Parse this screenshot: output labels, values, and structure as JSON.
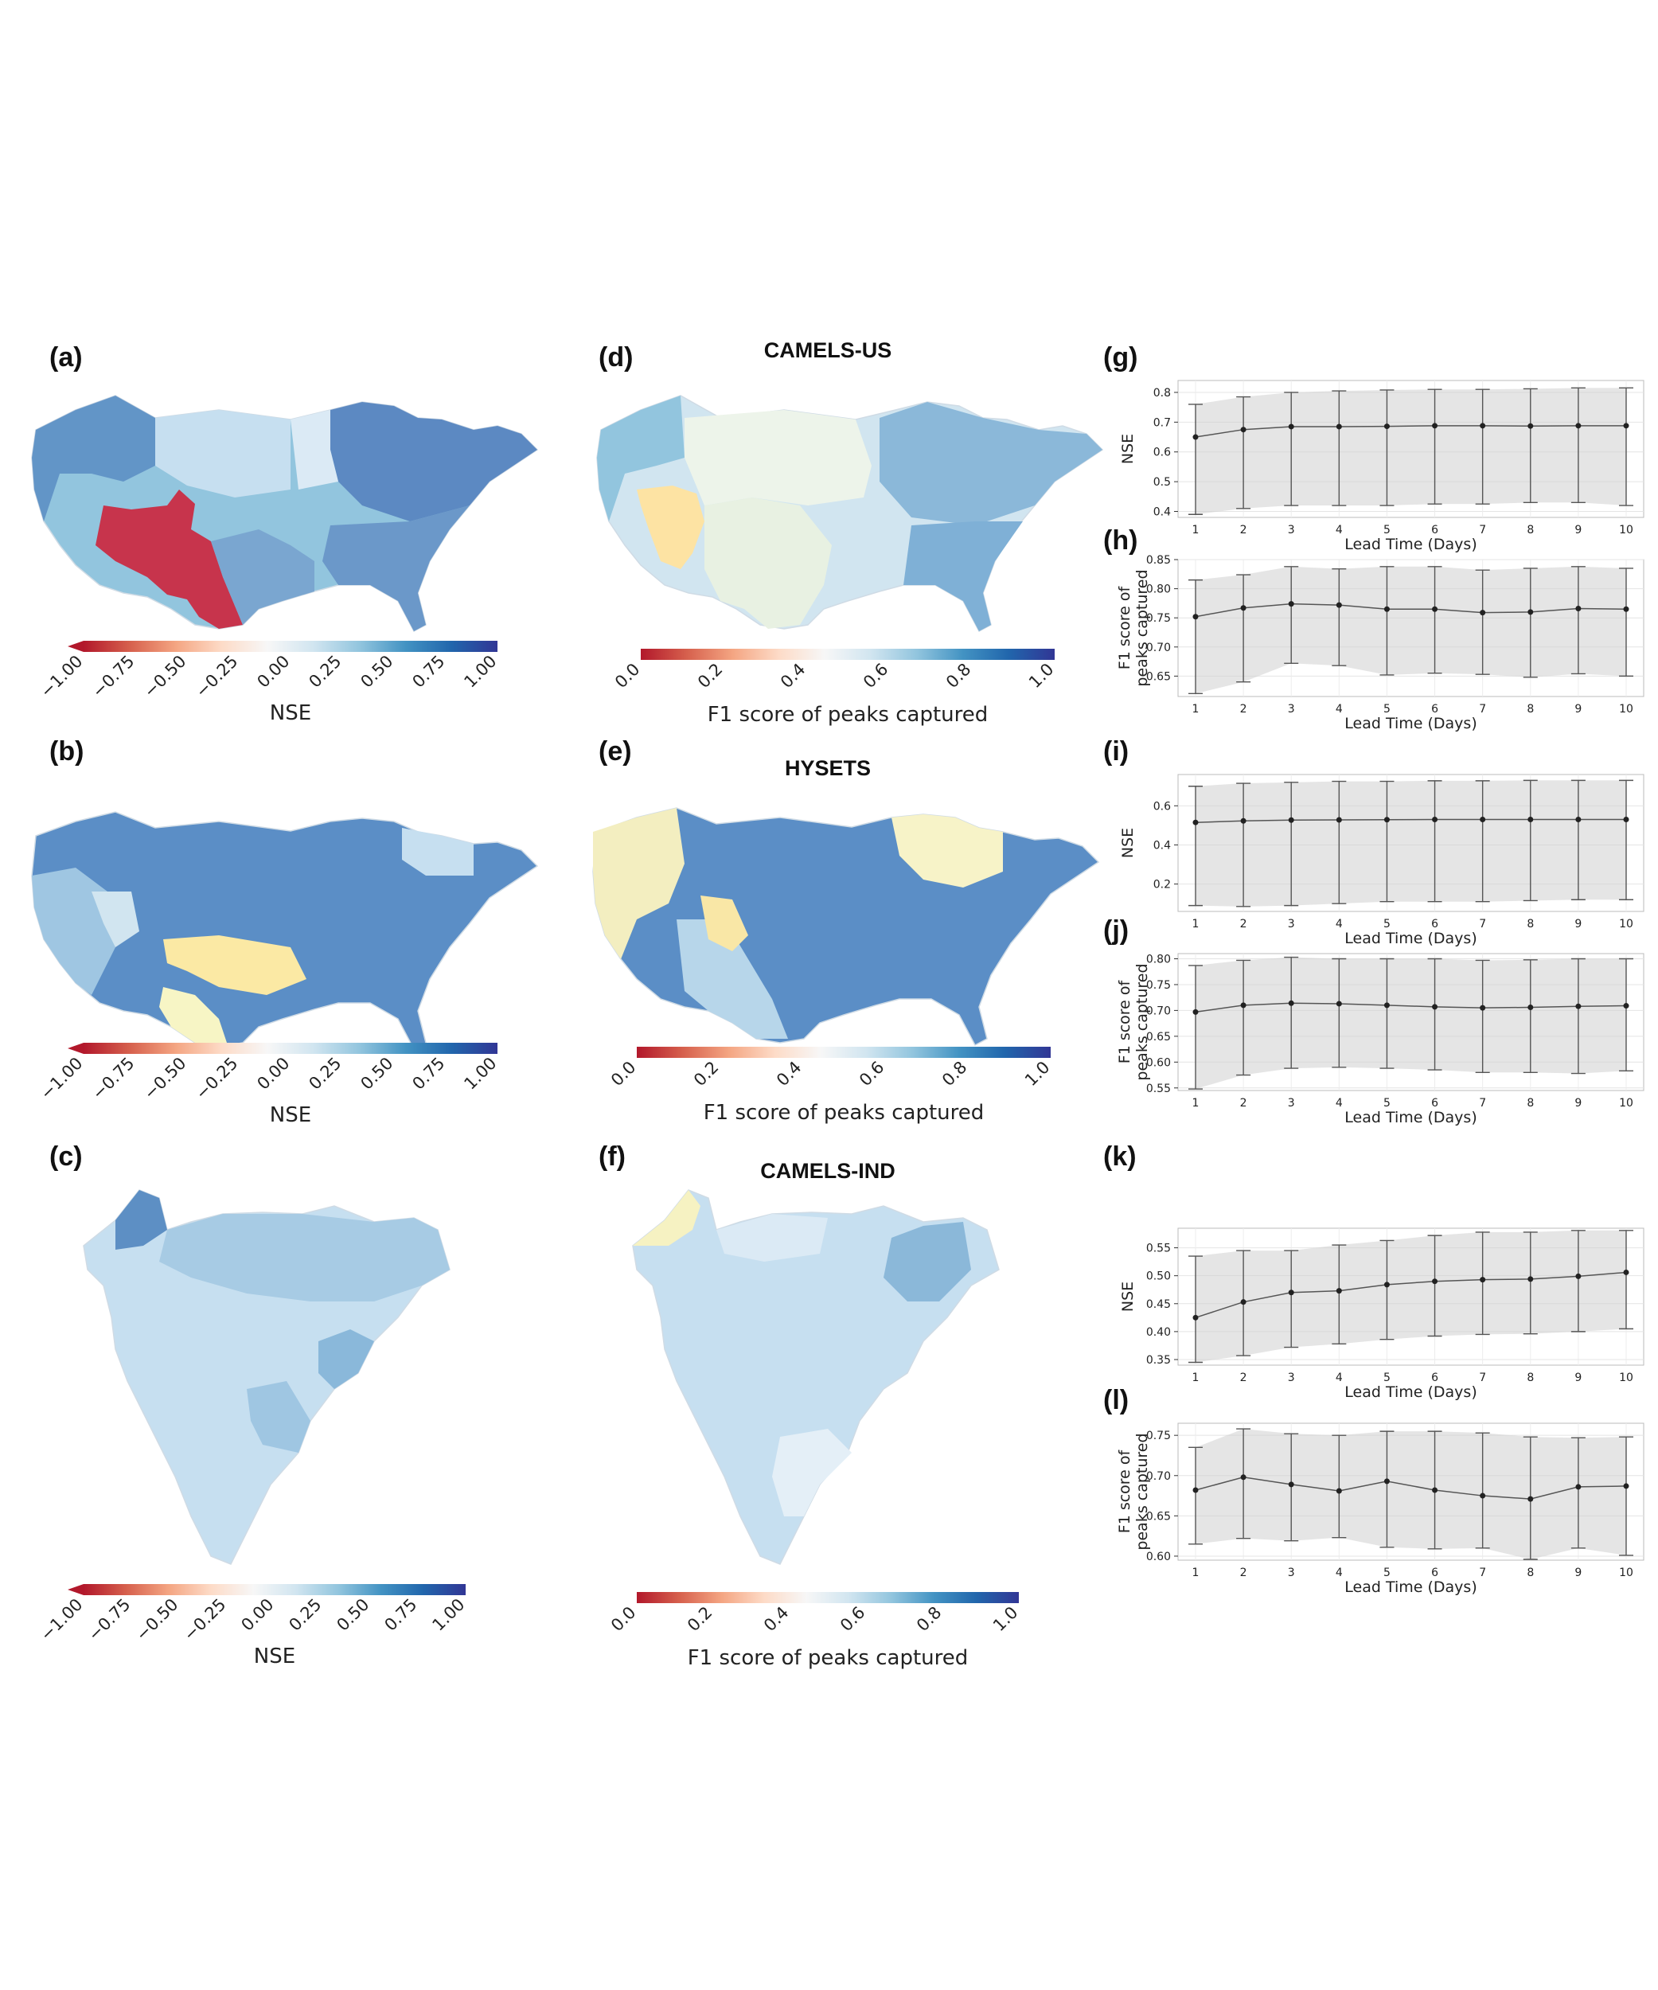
{
  "panel_labels": {
    "a": "(a)",
    "b": "(b)",
    "c": "(c)",
    "d": "(d)",
    "e": "(e)",
    "f": "(f)",
    "g": "(g)",
    "h": "(h)",
    "i": "(i)",
    "j": "(j)",
    "k": "(k)",
    "l": "(l)"
  },
  "dataset_titles": {
    "us": "CAMELS-US",
    "hysets": "HYSETS",
    "ind": "CAMELS-IND"
  },
  "colors": {
    "c0": "#b2182b",
    "c1": "#d6604d",
    "c2": "#f4a582",
    "c3": "#fddbc7",
    "c4": "#f7f7f7",
    "c5": "#d1e5f0",
    "c6": "#92c5de",
    "c7": "#4393c3",
    "c8": "#2166ac",
    "c9": "#313695"
  },
  "nse_colorbar": {
    "label": "NSE",
    "ticks": [
      "−1.00",
      "−0.75",
      "−0.50",
      "−0.25",
      "0.00",
      "0.25",
      "0.50",
      "0.75",
      "1.00"
    ]
  },
  "f1_colorbar": {
    "label": "F1 score of peaks captured",
    "ticks": [
      "0.0",
      "0.2",
      "0.4",
      "0.6",
      "0.8",
      "1.0"
    ]
  },
  "chart_data": [
    {
      "id": "g",
      "type": "line",
      "xlabel": "Lead Time (Days)",
      "ylabel": "NSE",
      "x": [
        1,
        2,
        3,
        4,
        5,
        6,
        7,
        8,
        9,
        10
      ],
      "yticks": [
        "0.4",
        "0.5",
        "0.6",
        "0.7",
        "0.8"
      ],
      "ytick_values": [
        0.4,
        0.5,
        0.6,
        0.7,
        0.8
      ],
      "ylim": [
        0.38,
        0.84
      ],
      "values": [
        0.65,
        0.675,
        0.685,
        0.685,
        0.686,
        0.688,
        0.688,
        0.687,
        0.688,
        0.688
      ],
      "lower": [
        0.39,
        0.41,
        0.42,
        0.42,
        0.42,
        0.425,
        0.425,
        0.43,
        0.43,
        0.42
      ],
      "upper": [
        0.76,
        0.785,
        0.8,
        0.805,
        0.808,
        0.81,
        0.81,
        0.812,
        0.815,
        0.815
      ]
    },
    {
      "id": "h",
      "type": "line",
      "xlabel": "Lead Time (Days)",
      "ylabel": "F1 score of\npeaks captured",
      "x": [
        1,
        2,
        3,
        4,
        5,
        6,
        7,
        8,
        9,
        10
      ],
      "yticks": [
        "0.65",
        "0.70",
        "0.75",
        "0.80",
        "0.85"
      ],
      "ytick_values": [
        0.65,
        0.7,
        0.75,
        0.8,
        0.85
      ],
      "ylim": [
        0.615,
        0.85
      ],
      "values": [
        0.752,
        0.767,
        0.774,
        0.772,
        0.765,
        0.765,
        0.759,
        0.76,
        0.766,
        0.765
      ],
      "lower": [
        0.62,
        0.64,
        0.672,
        0.668,
        0.652,
        0.655,
        0.653,
        0.648,
        0.654,
        0.65
      ],
      "upper": [
        0.815,
        0.824,
        0.838,
        0.834,
        0.838,
        0.838,
        0.832,
        0.835,
        0.838,
        0.835
      ]
    },
    {
      "id": "i",
      "type": "line",
      "xlabel": "Lead Time (Days)",
      "ylabel": "NSE",
      "x": [
        1,
        2,
        3,
        4,
        5,
        6,
        7,
        8,
        9,
        10
      ],
      "yticks": [
        "0.2",
        "0.4",
        "0.6"
      ],
      "ytick_values": [
        0.2,
        0.4,
        0.6
      ],
      "ylim": [
        0.06,
        0.76
      ],
      "values": [
        0.515,
        0.523,
        0.527,
        0.528,
        0.529,
        0.53,
        0.53,
        0.53,
        0.53,
        0.53
      ],
      "lower": [
        0.09,
        0.085,
        0.09,
        0.1,
        0.11,
        0.11,
        0.11,
        0.115,
        0.12,
        0.12
      ],
      "upper": [
        0.7,
        0.715,
        0.72,
        0.725,
        0.725,
        0.728,
        0.728,
        0.73,
        0.73,
        0.73
      ]
    },
    {
      "id": "j",
      "type": "line",
      "xlabel": "Lead Time (Days)",
      "ylabel": "F1 score of\npeaks captured",
      "x": [
        1,
        2,
        3,
        4,
        5,
        6,
        7,
        8,
        9,
        10
      ],
      "yticks": [
        "0.55",
        "0.60",
        "0.65",
        "0.70",
        "0.75",
        "0.80"
      ],
      "ytick_values": [
        0.55,
        0.6,
        0.65,
        0.7,
        0.75,
        0.8
      ],
      "ylim": [
        0.545,
        0.81
      ],
      "values": [
        0.697,
        0.71,
        0.714,
        0.713,
        0.71,
        0.707,
        0.705,
        0.706,
        0.708,
        0.709
      ],
      "lower": [
        0.548,
        0.575,
        0.588,
        0.59,
        0.588,
        0.585,
        0.58,
        0.58,
        0.578,
        0.583
      ],
      "upper": [
        0.787,
        0.797,
        0.803,
        0.8,
        0.8,
        0.8,
        0.797,
        0.798,
        0.8,
        0.8
      ]
    },
    {
      "id": "k",
      "type": "line",
      "xlabel": "Lead Time (Days)",
      "ylabel": "NSE",
      "x": [
        1,
        2,
        3,
        4,
        5,
        6,
        7,
        8,
        9,
        10
      ],
      "yticks": [
        "0.35",
        "0.40",
        "0.45",
        "0.50",
        "0.55"
      ],
      "ytick_values": [
        0.35,
        0.4,
        0.45,
        0.5,
        0.55
      ],
      "ylim": [
        0.34,
        0.585
      ],
      "values": [
        0.425,
        0.453,
        0.47,
        0.473,
        0.484,
        0.49,
        0.493,
        0.494,
        0.499,
        0.506
      ],
      "lower": [
        0.345,
        0.357,
        0.372,
        0.378,
        0.386,
        0.392,
        0.395,
        0.396,
        0.4,
        0.405
      ],
      "upper": [
        0.535,
        0.545,
        0.545,
        0.555,
        0.563,
        0.572,
        0.578,
        0.578,
        0.581,
        0.581
      ]
    },
    {
      "id": "l",
      "type": "line",
      "xlabel": "Lead Time (Days)",
      "ylabel": "F1 score of\npeaks captured",
      "x": [
        1,
        2,
        3,
        4,
        5,
        6,
        7,
        8,
        9,
        10
      ],
      "yticks": [
        "0.60",
        "0.65",
        "0.70",
        "0.75"
      ],
      "ytick_values": [
        0.6,
        0.65,
        0.7,
        0.75
      ],
      "ylim": [
        0.595,
        0.765
      ],
      "values": [
        0.682,
        0.698,
        0.689,
        0.681,
        0.693,
        0.682,
        0.675,
        0.671,
        0.686,
        0.687
      ],
      "lower": [
        0.615,
        0.622,
        0.619,
        0.623,
        0.611,
        0.609,
        0.61,
        0.596,
        0.61,
        0.601
      ],
      "upper": [
        0.735,
        0.758,
        0.752,
        0.75,
        0.755,
        0.755,
        0.753,
        0.748,
        0.747,
        0.748
      ]
    }
  ]
}
